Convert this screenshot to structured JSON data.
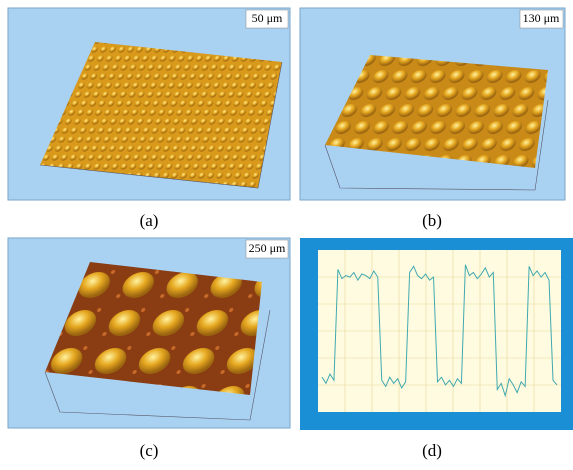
{
  "panels": [
    {
      "label": "(a)",
      "scale": "50 μm"
    },
    {
      "label": "(b)",
      "scale": "130 μm"
    },
    {
      "label": "(c)",
      "scale": "250 μm"
    },
    {
      "label": "(d)"
    }
  ],
  "chart_data": {
    "type": "line",
    "x": [
      0,
      1,
      2,
      3,
      4,
      5,
      6,
      7,
      8,
      9,
      10,
      11,
      12,
      13,
      14,
      15,
      16,
      17,
      18,
      19,
      20,
      21,
      22,
      23,
      24,
      25,
      26,
      27,
      28,
      29,
      30,
      31,
      32,
      33,
      34,
      35,
      36,
      37,
      38,
      39,
      40,
      41,
      42,
      43,
      44,
      45,
      46,
      47,
      48,
      49,
      50,
      51,
      52,
      53,
      54,
      55,
      56,
      57,
      58,
      59
    ],
    "series": [
      {
        "color": "#3fa9b0",
        "values": [
          20,
          16,
          22,
          18,
          90,
          84,
          86,
          85,
          88,
          83,
          87,
          86,
          84,
          89,
          85,
          18,
          14,
          20,
          16,
          19,
          13,
          17,
          88,
          92,
          86,
          84,
          87,
          83,
          85,
          17,
          20,
          15,
          18,
          14,
          19,
          16,
          93,
          86,
          88,
          84,
          87,
          91,
          85,
          88,
          12,
          16,
          8,
          19,
          15,
          10,
          17,
          14,
          92,
          86,
          89,
          85,
          88,
          83,
          18,
          15
        ]
      }
    ],
    "xlim": [
      0,
      59
    ],
    "ylim": [
      0,
      100
    ]
  }
}
